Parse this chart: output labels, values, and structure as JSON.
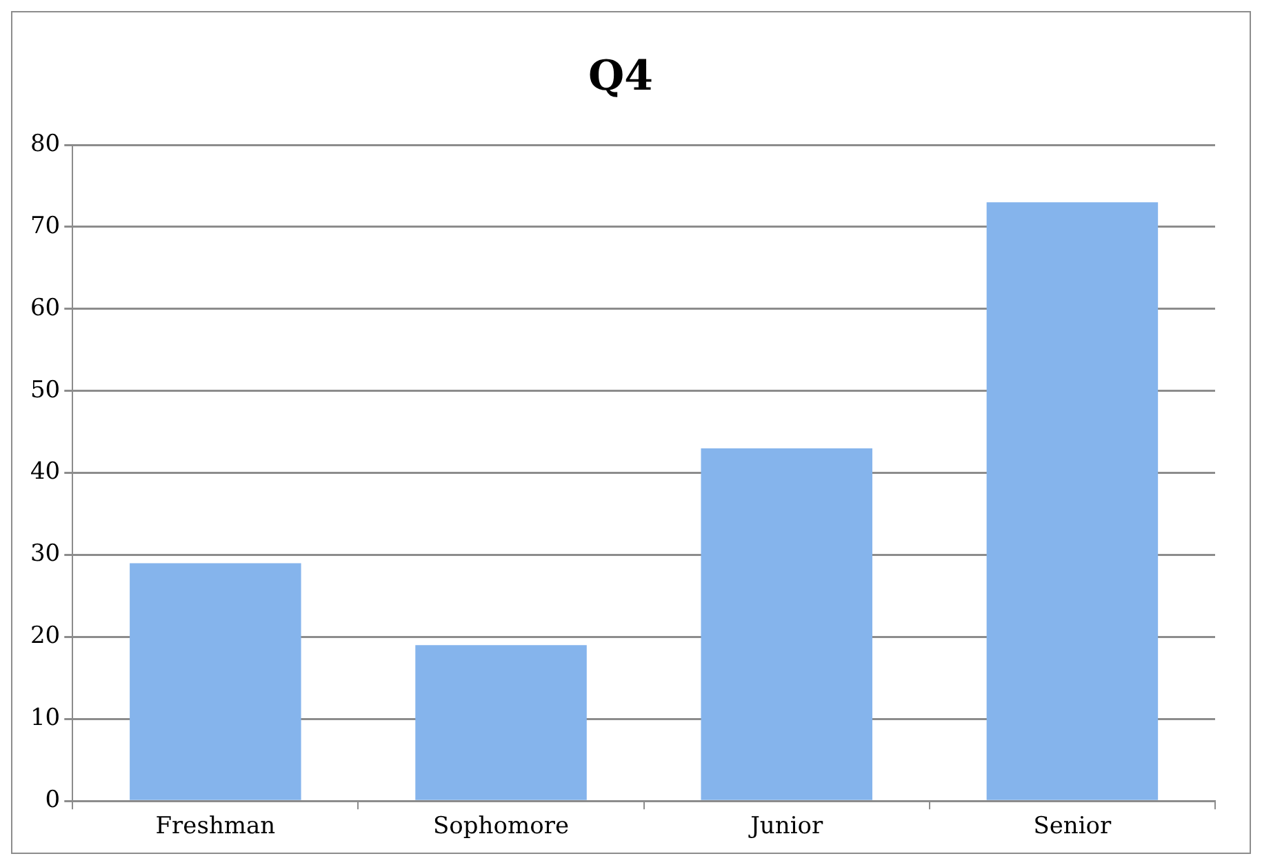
{
  "chart_data": {
    "type": "bar",
    "title": "Q4",
    "categories": [
      "Freshman",
      "Sophomore",
      "Junior",
      "Senior"
    ],
    "values": [
      29,
      19,
      43,
      73
    ],
    "color": "#85b4ec",
    "ylim": [
      0,
      80
    ],
    "yticks": [
      0,
      10,
      20,
      30,
      40,
      50,
      60,
      70,
      80
    ],
    "grid": "y",
    "legend": false
  }
}
